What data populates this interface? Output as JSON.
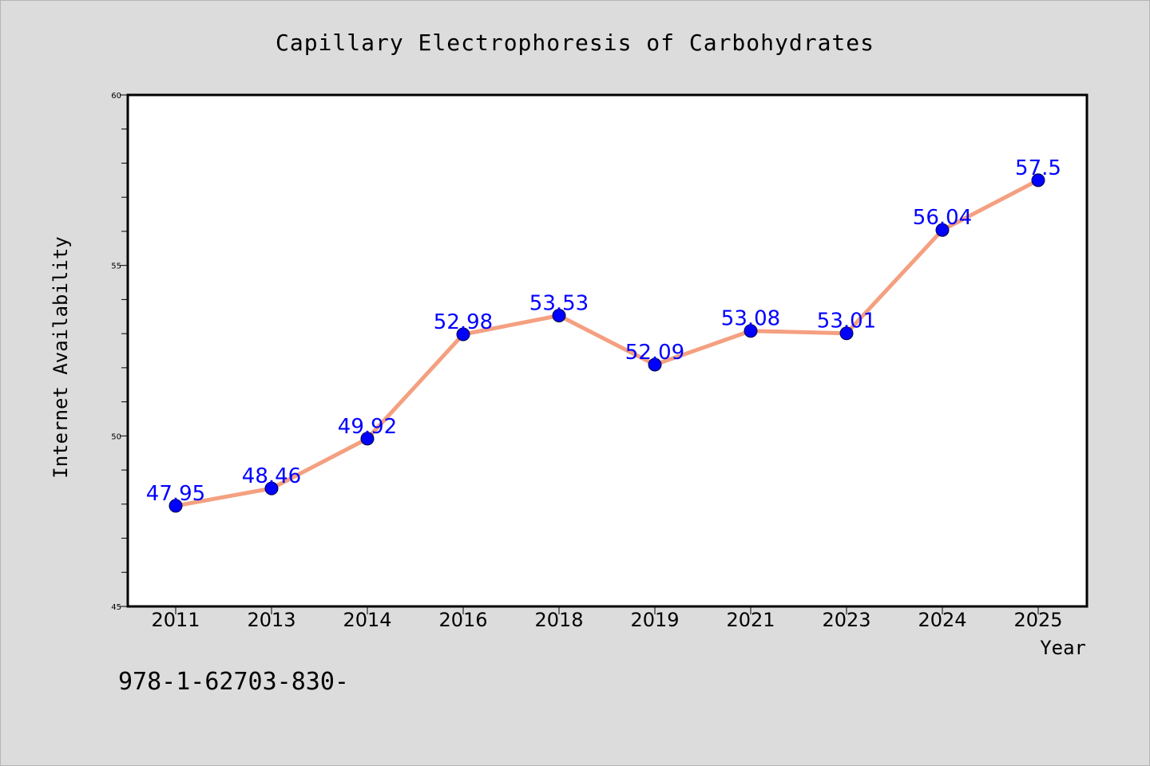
{
  "chart_data": {
    "type": "line",
    "title": "Capillary Electrophoresis of Carbohydrates",
    "xlabel": "Year",
    "ylabel": "Internet Availability",
    "categories": [
      "2011",
      "2013",
      "2014",
      "2016",
      "2018",
      "2019",
      "2021",
      "2023",
      "2024",
      "2025"
    ],
    "series": [
      {
        "values": [
          47.95,
          48.46,
          49.92,
          52.98,
          53.53,
          52.09,
          53.08,
          53.01,
          56.04,
          57.5
        ],
        "labels": [
          "47.95",
          "48.46",
          "49.92",
          "52.98",
          "53.53",
          "52.09",
          "53.08",
          "53.01",
          "56.04",
          "57.5"
        ],
        "line_color": "#f4a080",
        "marker_color": "#0000ff"
      }
    ],
    "ylim": [
      45,
      60
    ],
    "yticks": [
      "45",
      "50",
      "55",
      "60"
    ],
    "grid": false,
    "legend": "none"
  },
  "footer": {
    "text": "978-1-62703-830-"
  }
}
